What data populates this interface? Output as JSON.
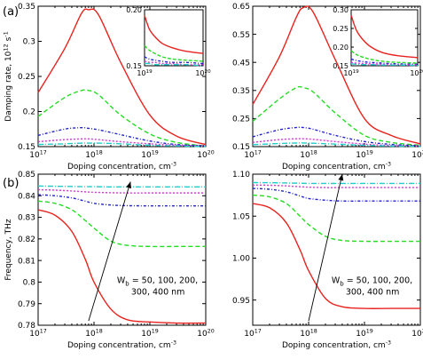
{
  "panel_labels": [
    "(a)",
    "(b)"
  ],
  "chart_data": [
    {
      "id": "a-left",
      "type": "line",
      "xlabel": "Doping concentration, cm",
      "xlabel_exp": "-3",
      "ylabel": "Damping rate, 10",
      "ylabel_exp": "12",
      "ylabel_tail": " s",
      "ylabel_tail_exp": "-1",
      "xscale": "log",
      "xlim": [
        1e+17,
        1e+20
      ],
      "ylim": [
        0.15,
        0.35
      ],
      "xticks": [
        {
          "v": 1e+17,
          "b": "10",
          "e": "17"
        },
        {
          "v": 1e+18,
          "b": "10",
          "e": "18"
        },
        {
          "v": 1e+19,
          "b": "10",
          "e": "19"
        },
        {
          "v": 1e+20,
          "b": "10",
          "e": "20"
        }
      ],
      "yticks": [
        {
          "v": 0.15,
          "t": "0.15"
        },
        {
          "v": 0.2,
          "t": "0.2"
        },
        {
          "v": 0.25,
          "t": "0.25"
        },
        {
          "v": 0.3,
          "t": "0.3"
        },
        {
          "v": 0.35,
          "t": "0.35"
        }
      ],
      "x": [
        1e+17,
        3e+17,
        6e+17,
        8e+17,
        1.2e+18,
        3e+18,
        1e+19,
        3e+19,
        1e+20
      ],
      "series": [
        {
          "values": [
            0.227,
            0.29,
            0.34,
            0.345,
            0.338,
            0.27,
            0.195,
            0.165,
            0.153
          ],
          "color": "#e8231f",
          "dash": ""
        },
        {
          "values": [
            0.193,
            0.22,
            0.23,
            0.23,
            0.224,
            0.195,
            0.168,
            0.156,
            0.151
          ],
          "color": "#22dd22",
          "dash": "5,3"
        },
        {
          "values": [
            0.166,
            0.175,
            0.177,
            0.176,
            0.174,
            0.167,
            0.158,
            0.153,
            0.151
          ],
          "color": "#2222cc",
          "dash": "3,2,1,2"
        },
        {
          "values": [
            0.157,
            0.16,
            0.161,
            0.161,
            0.16,
            0.157,
            0.154,
            0.152,
            0.151
          ],
          "color": "#dd33dd",
          "dash": "2,2"
        },
        {
          "values": [
            0.153,
            0.154,
            0.155,
            0.155,
            0.155,
            0.154,
            0.152,
            0.151,
            0.15
          ],
          "color": "#22cccc",
          "dash": "6,2,1,2"
        }
      ],
      "inset": {
        "xlim": [
          1e+19,
          1e+20
        ],
        "ylim": [
          0.15,
          0.2
        ],
        "xticks": [
          {
            "v": 1e+19,
            "b": "10",
            "e": "19"
          },
          {
            "v": 1e+20,
            "b": "10",
            "e": "20"
          }
        ],
        "yticks": [
          {
            "v": 0.15,
            "t": "0.15"
          },
          {
            "v": 0.2,
            "t": "0.20"
          }
        ],
        "x": [
          1e+19,
          1.2e+19,
          1.5e+19,
          2e+19,
          3e+19,
          5e+19,
          1e+20
        ],
        "series": [
          {
            "values": [
              0.195,
              0.183,
              0.176,
              0.17,
              0.166,
              0.163,
              0.161
            ],
            "color": "#e8231f",
            "dash": ""
          },
          {
            "values": [
              0.168,
              0.164,
              0.161,
              0.158,
              0.156,
              0.155,
              0.154
            ],
            "color": "#22dd22",
            "dash": "4,2"
          },
          {
            "values": [
              0.158,
              0.156,
              0.155,
              0.154,
              0.153,
              0.153,
              0.152
            ],
            "color": "#2222cc",
            "dash": "3,2,1,2"
          },
          {
            "values": [
              0.154,
              0.153,
              0.153,
              0.152,
              0.152,
              0.151,
              0.151
            ],
            "color": "#dd33dd",
            "dash": "2,2"
          },
          {
            "values": [
              0.152,
              0.152,
              0.151,
              0.151,
              0.151,
              0.151,
              0.15
            ],
            "color": "#22cccc",
            "dash": "6,2,1,2"
          }
        ]
      }
    },
    {
      "id": "a-right",
      "type": "line",
      "xlabel": "Doping concentration, cm",
      "xlabel_exp": "-3",
      "xscale": "log",
      "xlim": [
        1e+17,
        1e+20
      ],
      "ylim": [
        0.15,
        0.65
      ],
      "xticks": [
        {
          "v": 1e+17,
          "b": "10",
          "e": "17"
        },
        {
          "v": 1e+18,
          "b": "10",
          "e": "18"
        },
        {
          "v": 1e+19,
          "b": "10",
          "e": "19"
        },
        {
          "v": 1e+20,
          "b": "10",
          "e": "20"
        }
      ],
      "yticks": [
        {
          "v": 0.15,
          "t": "0.15"
        },
        {
          "v": 0.25,
          "t": "0.25"
        },
        {
          "v": 0.35,
          "t": "0.35"
        },
        {
          "v": 0.45,
          "t": "0.45"
        },
        {
          "v": 0.55,
          "t": "0.55"
        },
        {
          "v": 0.65,
          "t": "0.65"
        }
      ],
      "x": [
        1e+17,
        3e+17,
        6e+17,
        8e+17,
        1.2e+18,
        3e+18,
        1e+19,
        3e+19,
        1e+20
      ],
      "series": [
        {
          "values": [
            0.3,
            0.47,
            0.61,
            0.645,
            0.63,
            0.46,
            0.25,
            0.19,
            0.16
          ],
          "color": "#e8231f",
          "dash": ""
        },
        {
          "values": [
            0.24,
            0.32,
            0.36,
            0.36,
            0.345,
            0.27,
            0.19,
            0.165,
            0.155
          ],
          "color": "#22dd22",
          "dash": "5,3"
        },
        {
          "values": [
            0.185,
            0.21,
            0.218,
            0.218,
            0.212,
            0.19,
            0.168,
            0.158,
            0.153
          ],
          "color": "#2222cc",
          "dash": "3,2,1,2"
        },
        {
          "values": [
            0.165,
            0.175,
            0.178,
            0.178,
            0.176,
            0.168,
            0.159,
            0.154,
            0.152
          ],
          "color": "#dd33dd",
          "dash": "2,2"
        },
        {
          "values": [
            0.157,
            0.161,
            0.163,
            0.163,
            0.162,
            0.159,
            0.155,
            0.152,
            0.151
          ],
          "color": "#22cccc",
          "dash": "6,2,1,2"
        }
      ],
      "inset": {
        "xlim": [
          1e+19,
          1e+20
        ],
        "ylim": [
          0.15,
          0.3
        ],
        "xticks": [
          {
            "v": 1e+19,
            "b": "10",
            "e": "19"
          },
          {
            "v": 1e+20,
            "b": "10",
            "e": "20"
          }
        ],
        "yticks": [
          {
            "v": 0.15,
            "t": "0.15"
          },
          {
            "v": 0.2,
            "t": "0.20"
          },
          {
            "v": 0.25,
            "t": "0.25"
          },
          {
            "v": 0.3,
            "t": "0.30"
          }
        ],
        "x": [
          1e+19,
          1.2e+19,
          1.5e+19,
          2e+19,
          3e+19,
          5e+19,
          1e+20
        ],
        "series": [
          {
            "values": [
              0.285,
              0.245,
              0.22,
              0.2,
              0.185,
              0.177,
              0.172
            ],
            "color": "#e8231f",
            "dash": ""
          },
          {
            "values": [
              0.19,
              0.18,
              0.173,
              0.167,
              0.162,
              0.159,
              0.157
            ],
            "color": "#22dd22",
            "dash": "4,2"
          },
          {
            "values": [
              0.168,
              0.164,
              0.161,
              0.159,
              0.157,
              0.155,
              0.154
            ],
            "color": "#2222cc",
            "dash": "3,2,1,2"
          },
          {
            "values": [
              0.159,
              0.157,
              0.156,
              0.155,
              0.154,
              0.153,
              0.152
            ],
            "color": "#dd33dd",
            "dash": "2,2"
          },
          {
            "values": [
              0.155,
              0.154,
              0.153,
              0.153,
              0.152,
              0.152,
              0.151
            ],
            "color": "#22cccc",
            "dash": "6,2,1,2"
          }
        ]
      }
    },
    {
      "id": "b-left",
      "type": "line",
      "xlabel": "Doping concentration, cm",
      "xlabel_exp": "-3",
      "ylabel": "Frequency, THz",
      "xscale": "log",
      "xlim": [
        1e+17,
        1e+20
      ],
      "ylim": [
        0.78,
        0.85
      ],
      "xticks": [
        {
          "v": 1e+17,
          "b": "10",
          "e": "17"
        },
        {
          "v": 1e+18,
          "b": "10",
          "e": "18"
        },
        {
          "v": 1e+19,
          "b": "10",
          "e": "19"
        },
        {
          "v": 1e+20,
          "b": "10",
          "e": "20"
        }
      ],
      "yticks": [
        {
          "v": 0.78,
          "t": "0.78"
        },
        {
          "v": 0.79,
          "t": "0.79"
        },
        {
          "v": 0.8,
          "t": "0.8"
        },
        {
          "v": 0.81,
          "t": "0.81"
        },
        {
          "v": 0.82,
          "t": "0.82"
        },
        {
          "v": 0.83,
          "t": "0.83"
        },
        {
          "v": 0.84,
          "t": "0.84"
        },
        {
          "v": 0.85,
          "t": "0.85"
        }
      ],
      "x": [
        1e+17,
        2e+17,
        4e+17,
        7e+17,
        1e+18,
        2e+18,
        4e+18,
        1e+19,
        3e+19,
        1e+20
      ],
      "series": [
        {
          "values": [
            0.8335,
            0.831,
            0.8235,
            0.8105,
            0.8,
            0.7875,
            0.7825,
            0.7815,
            0.781,
            0.781
          ],
          "color": "#e8231f",
          "dash": ""
        },
        {
          "values": [
            0.8375,
            0.8365,
            0.8335,
            0.8285,
            0.825,
            0.819,
            0.817,
            0.8165,
            0.8165,
            0.8165
          ],
          "color": "#22dd22",
          "dash": "5,3"
        },
        {
          "values": [
            0.8405,
            0.84,
            0.839,
            0.8375,
            0.8365,
            0.8357,
            0.8354,
            0.8353,
            0.8353,
            0.8353
          ],
          "color": "#2222cc",
          "dash": "3,2,1,2"
        },
        {
          "values": [
            0.8428,
            0.8426,
            0.8422,
            0.8418,
            0.8416,
            0.8414,
            0.8413,
            0.8413,
            0.8413,
            0.8413
          ],
          "color": "#dd33dd",
          "dash": "2,2"
        },
        {
          "values": [
            0.8445,
            0.8444,
            0.8443,
            0.8442,
            0.8442,
            0.8441,
            0.8441,
            0.8441,
            0.8441,
            0.8441
          ],
          "color": "#22cccc",
          "dash": "6,2,1,2"
        }
      ],
      "annotation": {
        "lines": [
          "W",
          "b",
          " = 50, 100, 200,",
          "300, 400 nm"
        ],
        "arrow_from": [
          8e+17,
          0.782
        ],
        "arrow_to": [
          4.5e+18,
          0.8465
        ]
      }
    },
    {
      "id": "b-right",
      "type": "line",
      "xlabel": "Doping concentration, cm",
      "xlabel_exp": "-3",
      "xscale": "log",
      "xlim": [
        1e+17,
        1e+20
      ],
      "ylim": [
        0.92,
        1.1
      ],
      "xticks": [
        {
          "v": 1e+17,
          "b": "10",
          "e": "17"
        },
        {
          "v": 1e+18,
          "b": "10",
          "e": "18"
        },
        {
          "v": 1e+19,
          "b": "10",
          "e": "19"
        },
        {
          "v": 1e+20,
          "b": "10",
          "e": "20"
        }
      ],
      "yticks": [
        {
          "v": 0.95,
          "t": "0.95"
        },
        {
          "v": 1.0,
          "t": "1.00"
        },
        {
          "v": 1.05,
          "t": "1.05"
        },
        {
          "v": 1.1,
          "t": "1.10"
        }
      ],
      "x": [
        1e+17,
        2e+17,
        4e+17,
        7e+17,
        1e+18,
        2e+18,
        4e+18,
        1e+19,
        3e+19,
        1e+20
      ],
      "series": [
        {
          "values": [
            1.065,
            1.06,
            1.042,
            1.01,
            0.985,
            0.952,
            0.942,
            0.94,
            0.94,
            0.94
          ],
          "color": "#e8231f",
          "dash": ""
        },
        {
          "values": [
            1.075,
            1.073,
            1.065,
            1.05,
            1.04,
            1.026,
            1.021,
            1.02,
            1.02,
            1.02
          ],
          "color": "#22dd22",
          "dash": "5,3"
        },
        {
          "values": [
            1.083,
            1.082,
            1.079,
            1.074,
            1.071,
            1.069,
            1.068,
            1.068,
            1.068,
            1.068
          ],
          "color": "#2222cc",
          "dash": "3,2,1,2"
        },
        {
          "values": [
            1.087,
            1.0868,
            1.086,
            1.085,
            1.0845,
            1.084,
            1.084,
            1.084,
            1.084,
            1.084
          ],
          "color": "#dd33dd",
          "dash": "2,2"
        },
        {
          "values": [
            1.09,
            1.0898,
            1.0895,
            1.0892,
            1.089,
            1.0889,
            1.0889,
            1.0889,
            1.0889,
            1.0889
          ],
          "color": "#22cccc",
          "dash": "6,2,1,2"
        }
      ],
      "annotation": {
        "lines": [
          "W",
          "b",
          " = 50, 100, 200,",
          "300, 400 nm"
        ],
        "arrow_from": [
          1e+18,
          0.925
        ],
        "arrow_to": [
          4e+18,
          1.1
        ]
      }
    }
  ]
}
